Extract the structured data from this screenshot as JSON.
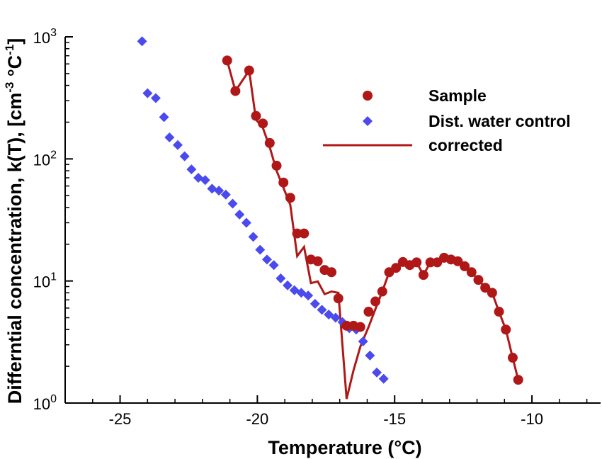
{
  "chart_data": {
    "type": "scatter",
    "xlabel": "Temperature (°C)",
    "ylabel": {
      "main": "Differntial concentration, k(T), [cm",
      "exp1": "-3",
      "mid": " °C",
      "exp2": "-1",
      "end": "]"
    },
    "xlim": [
      -27,
      -7.5
    ],
    "ylim": [
      1,
      1000
    ],
    "y_scale": "log",
    "grid": false,
    "legend_position": "top-right",
    "x_ticks": [
      -25,
      -20,
      -15,
      -10
    ],
    "x_tick_labels": [
      "-25",
      "-20",
      "-15",
      "-10"
    ],
    "y_ticks": [
      {
        "value": 1,
        "base": "10",
        "exp": "0"
      },
      {
        "value": 10,
        "base": "10",
        "exp": "1"
      },
      {
        "value": 100,
        "base": "10",
        "exp": "2"
      },
      {
        "value": 1000,
        "base": "10",
        "exp": "3"
      }
    ],
    "colors": {
      "sample": "#b01818",
      "control": "#4a4aef",
      "corrected": "#b01818"
    },
    "series": [
      {
        "name": "Sample",
        "marker": "circle",
        "points": [
          [
            -21.1,
            640
          ],
          [
            -20.8,
            360
          ],
          [
            -20.3,
            530
          ],
          [
            -20.05,
            225
          ],
          [
            -19.8,
            195
          ],
          [
            -19.55,
            135
          ],
          [
            -19.3,
            88
          ],
          [
            -19.05,
            64
          ],
          [
            -18.8,
            48
          ],
          [
            -18.55,
            24.5
          ],
          [
            -18.3,
            24.5
          ],
          [
            -18.05,
            15
          ],
          [
            -17.8,
            14.5
          ],
          [
            -17.55,
            12.3
          ],
          [
            -17.3,
            11.8
          ],
          [
            -17.05,
            7.2
          ],
          [
            -16.75,
            4.3
          ],
          [
            -16.5,
            4.3
          ],
          [
            -16.25,
            4.2
          ],
          [
            -15.95,
            5.6
          ],
          [
            -15.7,
            6.8
          ],
          [
            -15.45,
            8.2
          ],
          [
            -15.2,
            11.8
          ],
          [
            -14.95,
            12.8
          ],
          [
            -14.7,
            14.3
          ],
          [
            -14.45,
            13.5
          ],
          [
            -14.2,
            14.2
          ],
          [
            -13.95,
            11.2
          ],
          [
            -13.7,
            14.2
          ],
          [
            -13.45,
            14.2
          ],
          [
            -13.2,
            15.5
          ],
          [
            -12.95,
            15
          ],
          [
            -12.7,
            14.5
          ],
          [
            -12.45,
            13.2
          ],
          [
            -12.2,
            11.8
          ],
          [
            -11.95,
            10.2
          ],
          [
            -11.7,
            8.8
          ],
          [
            -11.45,
            8
          ],
          [
            -11.2,
            5.6
          ],
          [
            -10.95,
            4
          ],
          [
            -10.7,
            2.35
          ],
          [
            -10.5,
            1.55
          ]
        ]
      },
      {
        "name": "Dist. water control",
        "marker": "diamond",
        "points": [
          [
            -24.2,
            920
          ],
          [
            -24.0,
            345
          ],
          [
            -23.7,
            315
          ],
          [
            -23.4,
            220
          ],
          [
            -23.2,
            150
          ],
          [
            -22.9,
            130
          ],
          [
            -22.65,
            105
          ],
          [
            -22.4,
            82
          ],
          [
            -22.15,
            70
          ],
          [
            -21.9,
            67
          ],
          [
            -21.65,
            57
          ],
          [
            -21.4,
            55
          ],
          [
            -21.15,
            51
          ],
          [
            -20.9,
            43
          ],
          [
            -20.65,
            35
          ],
          [
            -20.4,
            30
          ],
          [
            -20.15,
            23
          ],
          [
            -19.9,
            18
          ],
          [
            -19.65,
            15
          ],
          [
            -19.4,
            13.5
          ],
          [
            -19.15,
            10.5
          ],
          [
            -18.9,
            9.2
          ],
          [
            -18.65,
            8.4
          ],
          [
            -18.4,
            8
          ],
          [
            -18.15,
            7.6
          ],
          [
            -17.9,
            6.5
          ],
          [
            -17.65,
            5.8
          ],
          [
            -17.4,
            5.3
          ],
          [
            -17.15,
            5.0
          ],
          [
            -16.9,
            4.6
          ],
          [
            -16.65,
            4.1
          ],
          [
            -16.4,
            4.0
          ],
          [
            -16.15,
            3.2
          ],
          [
            -15.9,
            2.45
          ],
          [
            -15.65,
            1.78
          ],
          [
            -15.4,
            1.58
          ]
        ]
      },
      {
        "name": "corrected",
        "marker": "line",
        "points": [
          [
            -21.1,
            640
          ],
          [
            -20.8,
            360
          ],
          [
            -20.3,
            530
          ],
          [
            -20.05,
            210
          ],
          [
            -19.8,
            180
          ],
          [
            -19.55,
            125
          ],
          [
            -19.3,
            80
          ],
          [
            -19.05,
            58
          ],
          [
            -18.8,
            42
          ],
          [
            -18.55,
            16
          ],
          [
            -18.3,
            19
          ],
          [
            -18.05,
            9.6
          ],
          [
            -17.8,
            9.9
          ],
          [
            -17.55,
            7.8
          ],
          [
            -17.3,
            8.2
          ],
          [
            -17.05,
            8.0
          ],
          [
            -16.75,
            1.08
          ],
          [
            -16.5,
            1.85
          ],
          [
            -16.25,
            2.9
          ],
          [
            -15.95,
            4.2
          ],
          [
            -15.7,
            5.9
          ],
          [
            -15.45,
            8.2
          ],
          [
            -15.2,
            11.8
          ],
          [
            -14.95,
            12.8
          ],
          [
            -14.7,
            14.3
          ],
          [
            -14.45,
            13.5
          ],
          [
            -14.2,
            14.2
          ],
          [
            -13.95,
            11.2
          ],
          [
            -13.7,
            14.2
          ],
          [
            -13.45,
            14.2
          ],
          [
            -13.2,
            15.5
          ],
          [
            -12.95,
            15
          ],
          [
            -12.7,
            14.5
          ],
          [
            -12.45,
            13.2
          ],
          [
            -12.2,
            11.8
          ],
          [
            -11.95,
            10.2
          ],
          [
            -11.7,
            8.8
          ],
          [
            -11.45,
            8
          ],
          [
            -11.2,
            5.6
          ],
          [
            -10.95,
            4
          ],
          [
            -10.7,
            2.35
          ],
          [
            -10.5,
            1.55
          ]
        ]
      }
    ]
  }
}
